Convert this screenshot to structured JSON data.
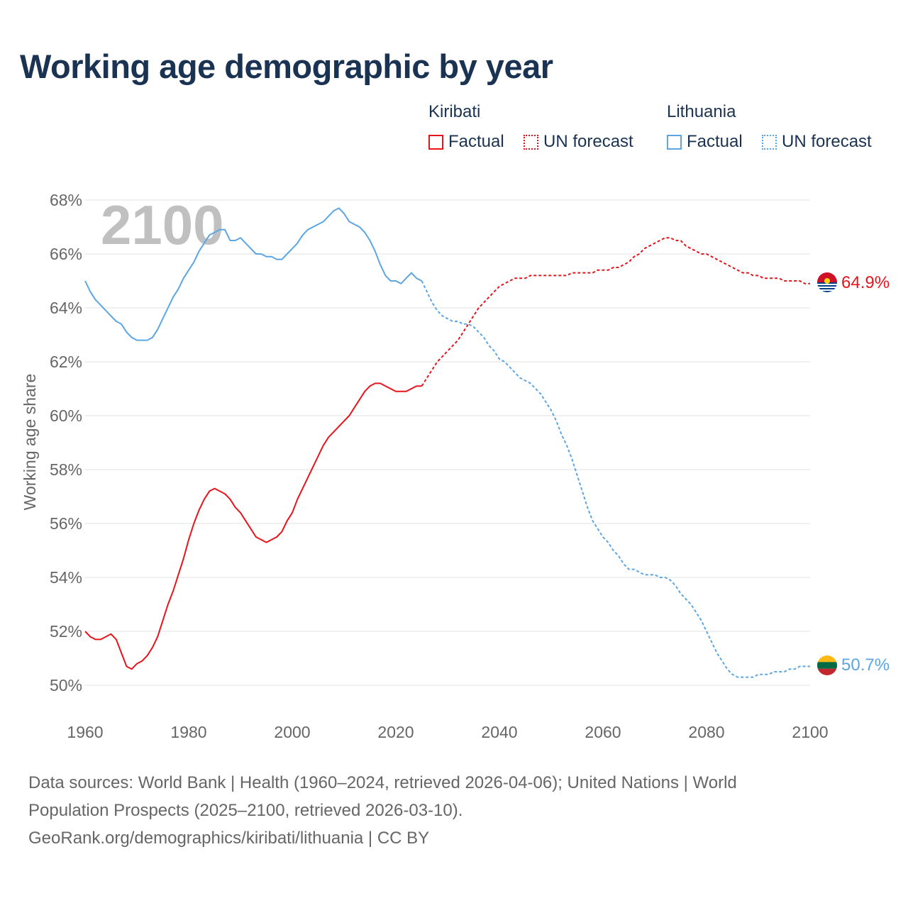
{
  "title": "Working age demographic by year",
  "legend": {
    "kiribati": {
      "country": "Kiribati",
      "factual": "Factual",
      "forecast": "UN forecast",
      "color": "#e8141b"
    },
    "lithuania": {
      "country": "Lithuania",
      "factual": "Factual",
      "forecast": "UN forecast",
      "color": "#5ba6e3"
    }
  },
  "footer": {
    "line1": "Data sources: World Bank | Health (1960–2024, retrieved 2026-04-06); United Nations | World",
    "line2": "Population Prospects (2025–2100, retrieved 2026-03-10).",
    "line3": "GeoRank.org/demographics/kiribati/lithuania | CC BY"
  },
  "chart_data": {
    "type": "line",
    "title": "Working age demographic by year",
    "xlabel": "",
    "ylabel": "Working age share",
    "year_label": "2100",
    "xlim": [
      1960,
      2100
    ],
    "ylim": [
      50,
      68
    ],
    "x_ticks": [
      1960,
      1980,
      2000,
      2020,
      2040,
      2060,
      2080,
      2100
    ],
    "y_ticks": [
      50,
      52,
      54,
      56,
      58,
      60,
      62,
      64,
      66,
      68
    ],
    "y_tick_labels": [
      "50%",
      "52%",
      "54%",
      "56%",
      "58%",
      "60%",
      "62%",
      "64%",
      "66%",
      "68%"
    ],
    "x_tick_labels": [
      "1960",
      "1980",
      "2000",
      "2020",
      "2040",
      "2060",
      "2080",
      "2100"
    ],
    "grid": true,
    "series": [
      {
        "name": "Kiribati",
        "color": "#e8141b",
        "end_label": "64.9%",
        "factual": {
          "x": [
            1960,
            1961,
            1962,
            1963,
            1964,
            1965,
            1966,
            1967,
            1968,
            1969,
            1970,
            1971,
            1972,
            1973,
            1974,
            1975,
            1976,
            1977,
            1978,
            1979,
            1980,
            1981,
            1982,
            1983,
            1984,
            1985,
            1986,
            1987,
            1988,
            1989,
            1990,
            1991,
            1992,
            1993,
            1994,
            1995,
            1996,
            1997,
            1998,
            1999,
            2000,
            2001,
            2002,
            2003,
            2004,
            2005,
            2006,
            2007,
            2008,
            2009,
            2010,
            2011,
            2012,
            2013,
            2014,
            2015,
            2016,
            2017,
            2018,
            2019,
            2020,
            2021,
            2022,
            2023,
            2024,
            2025
          ],
          "y": [
            52.0,
            51.8,
            51.7,
            51.7,
            51.8,
            51.9,
            51.7,
            51.2,
            50.7,
            50.6,
            50.8,
            50.9,
            51.1,
            51.4,
            51.8,
            52.4,
            53.0,
            53.5,
            54.1,
            54.7,
            55.4,
            56.0,
            56.5,
            56.9,
            57.2,
            57.3,
            57.2,
            57.1,
            56.9,
            56.6,
            56.4,
            56.1,
            55.8,
            55.5,
            55.4,
            55.3,
            55.4,
            55.5,
            55.7,
            56.1,
            56.4,
            56.9,
            57.3,
            57.7,
            58.1,
            58.5,
            58.9,
            59.2,
            59.4,
            59.6,
            59.8,
            60.0,
            60.3,
            60.6,
            60.9,
            61.1,
            61.2,
            61.2,
            61.1,
            61.0,
            60.9,
            60.9,
            60.9,
            61.0,
            61.1,
            61.1
          ]
        },
        "forecast": {
          "x": [
            2025,
            2026,
            2027,
            2028,
            2029,
            2030,
            2031,
            2032,
            2033,
            2034,
            2035,
            2036,
            2037,
            2038,
            2039,
            2040,
            2041,
            2042,
            2043,
            2044,
            2045,
            2046,
            2047,
            2048,
            2049,
            2050,
            2051,
            2052,
            2053,
            2054,
            2055,
            2056,
            2057,
            2058,
            2059,
            2060,
            2061,
            2062,
            2063,
            2064,
            2065,
            2066,
            2067,
            2068,
            2069,
            2070,
            2071,
            2072,
            2073,
            2074,
            2075,
            2076,
            2077,
            2078,
            2079,
            2080,
            2081,
            2082,
            2083,
            2084,
            2085,
            2086,
            2087,
            2088,
            2089,
            2090,
            2091,
            2092,
            2093,
            2094,
            2095,
            2096,
            2097,
            2098,
            2099,
            2100
          ],
          "y": [
            61.1,
            61.4,
            61.7,
            62.0,
            62.2,
            62.4,
            62.6,
            62.8,
            63.1,
            63.4,
            63.7,
            64.0,
            64.2,
            64.4,
            64.6,
            64.8,
            64.9,
            65.0,
            65.1,
            65.1,
            65.1,
            65.2,
            65.2,
            65.2,
            65.2,
            65.2,
            65.2,
            65.2,
            65.2,
            65.3,
            65.3,
            65.3,
            65.3,
            65.3,
            65.4,
            65.4,
            65.4,
            65.5,
            65.5,
            65.6,
            65.7,
            65.9,
            66.0,
            66.2,
            66.3,
            66.4,
            66.5,
            66.6,
            66.6,
            66.5,
            66.5,
            66.3,
            66.2,
            66.1,
            66.0,
            66.0,
            65.9,
            65.8,
            65.7,
            65.6,
            65.5,
            65.4,
            65.3,
            65.3,
            65.2,
            65.2,
            65.1,
            65.1,
            65.1,
            65.1,
            65.0,
            65.0,
            65.0,
            65.0,
            64.9,
            64.9
          ]
        }
      },
      {
        "name": "Lithuania",
        "color": "#5ba6e3",
        "end_label": "50.7%",
        "factual": {
          "x": [
            1960,
            1961,
            1962,
            1963,
            1964,
            1965,
            1966,
            1967,
            1968,
            1969,
            1970,
            1971,
            1972,
            1973,
            1974,
            1975,
            1976,
            1977,
            1978,
            1979,
            1980,
            1981,
            1982,
            1983,
            1984,
            1985,
            1986,
            1987,
            1988,
            1989,
            1990,
            1991,
            1992,
            1993,
            1994,
            1995,
            1996,
            1997,
            1998,
            1999,
            2000,
            2001,
            2002,
            2003,
            2004,
            2005,
            2006,
            2007,
            2008,
            2009,
            2010,
            2011,
            2012,
            2013,
            2014,
            2015,
            2016,
            2017,
            2018,
            2019,
            2020,
            2021,
            2022,
            2023,
            2024,
            2025
          ],
          "y": [
            65.0,
            64.6,
            64.3,
            64.1,
            63.9,
            63.7,
            63.5,
            63.4,
            63.1,
            62.9,
            62.8,
            62.8,
            62.8,
            62.9,
            63.2,
            63.6,
            64.0,
            64.4,
            64.7,
            65.1,
            65.4,
            65.7,
            66.1,
            66.4,
            66.7,
            66.8,
            66.9,
            66.9,
            66.5,
            66.5,
            66.6,
            66.4,
            66.2,
            66.0,
            66.0,
            65.9,
            65.9,
            65.8,
            65.8,
            66.0,
            66.2,
            66.4,
            66.7,
            66.9,
            67.0,
            67.1,
            67.2,
            67.4,
            67.6,
            67.7,
            67.5,
            67.2,
            67.1,
            67.0,
            66.8,
            66.5,
            66.1,
            65.6,
            65.2,
            65.0,
            65.0,
            64.9,
            65.1,
            65.3,
            65.1,
            65.0
          ]
        },
        "forecast": {
          "x": [
            2025,
            2026,
            2027,
            2028,
            2029,
            2030,
            2031,
            2032,
            2033,
            2034,
            2035,
            2036,
            2037,
            2038,
            2039,
            2040,
            2041,
            2042,
            2043,
            2044,
            2045,
            2046,
            2047,
            2048,
            2049,
            2050,
            2051,
            2052,
            2053,
            2054,
            2055,
            2056,
            2057,
            2058,
            2059,
            2060,
            2061,
            2062,
            2063,
            2064,
            2065,
            2066,
            2067,
            2068,
            2069,
            2070,
            2071,
            2072,
            2073,
            2074,
            2075,
            2076,
            2077,
            2078,
            2079,
            2080,
            2081,
            2082,
            2083,
            2084,
            2085,
            2086,
            2087,
            2088,
            2089,
            2090,
            2091,
            2092,
            2093,
            2094,
            2095,
            2096,
            2097,
            2098,
            2099,
            2100
          ],
          "y": [
            65.0,
            64.6,
            64.2,
            63.9,
            63.7,
            63.6,
            63.5,
            63.5,
            63.4,
            63.4,
            63.3,
            63.1,
            62.9,
            62.6,
            62.4,
            62.1,
            62.0,
            61.8,
            61.6,
            61.4,
            61.3,
            61.2,
            61.0,
            60.8,
            60.5,
            60.2,
            59.8,
            59.3,
            58.9,
            58.4,
            57.8,
            57.2,
            56.6,
            56.1,
            55.8,
            55.5,
            55.3,
            55.0,
            54.8,
            54.5,
            54.3,
            54.3,
            54.2,
            54.1,
            54.1,
            54.1,
            54.0,
            54.0,
            53.9,
            53.7,
            53.4,
            53.2,
            53.0,
            52.7,
            52.4,
            52.0,
            51.6,
            51.2,
            50.9,
            50.6,
            50.4,
            50.3,
            50.3,
            50.3,
            50.3,
            50.4,
            50.4,
            50.4,
            50.5,
            50.5,
            50.5,
            50.6,
            50.6,
            50.7,
            50.7,
            50.7
          ]
        }
      }
    ]
  }
}
